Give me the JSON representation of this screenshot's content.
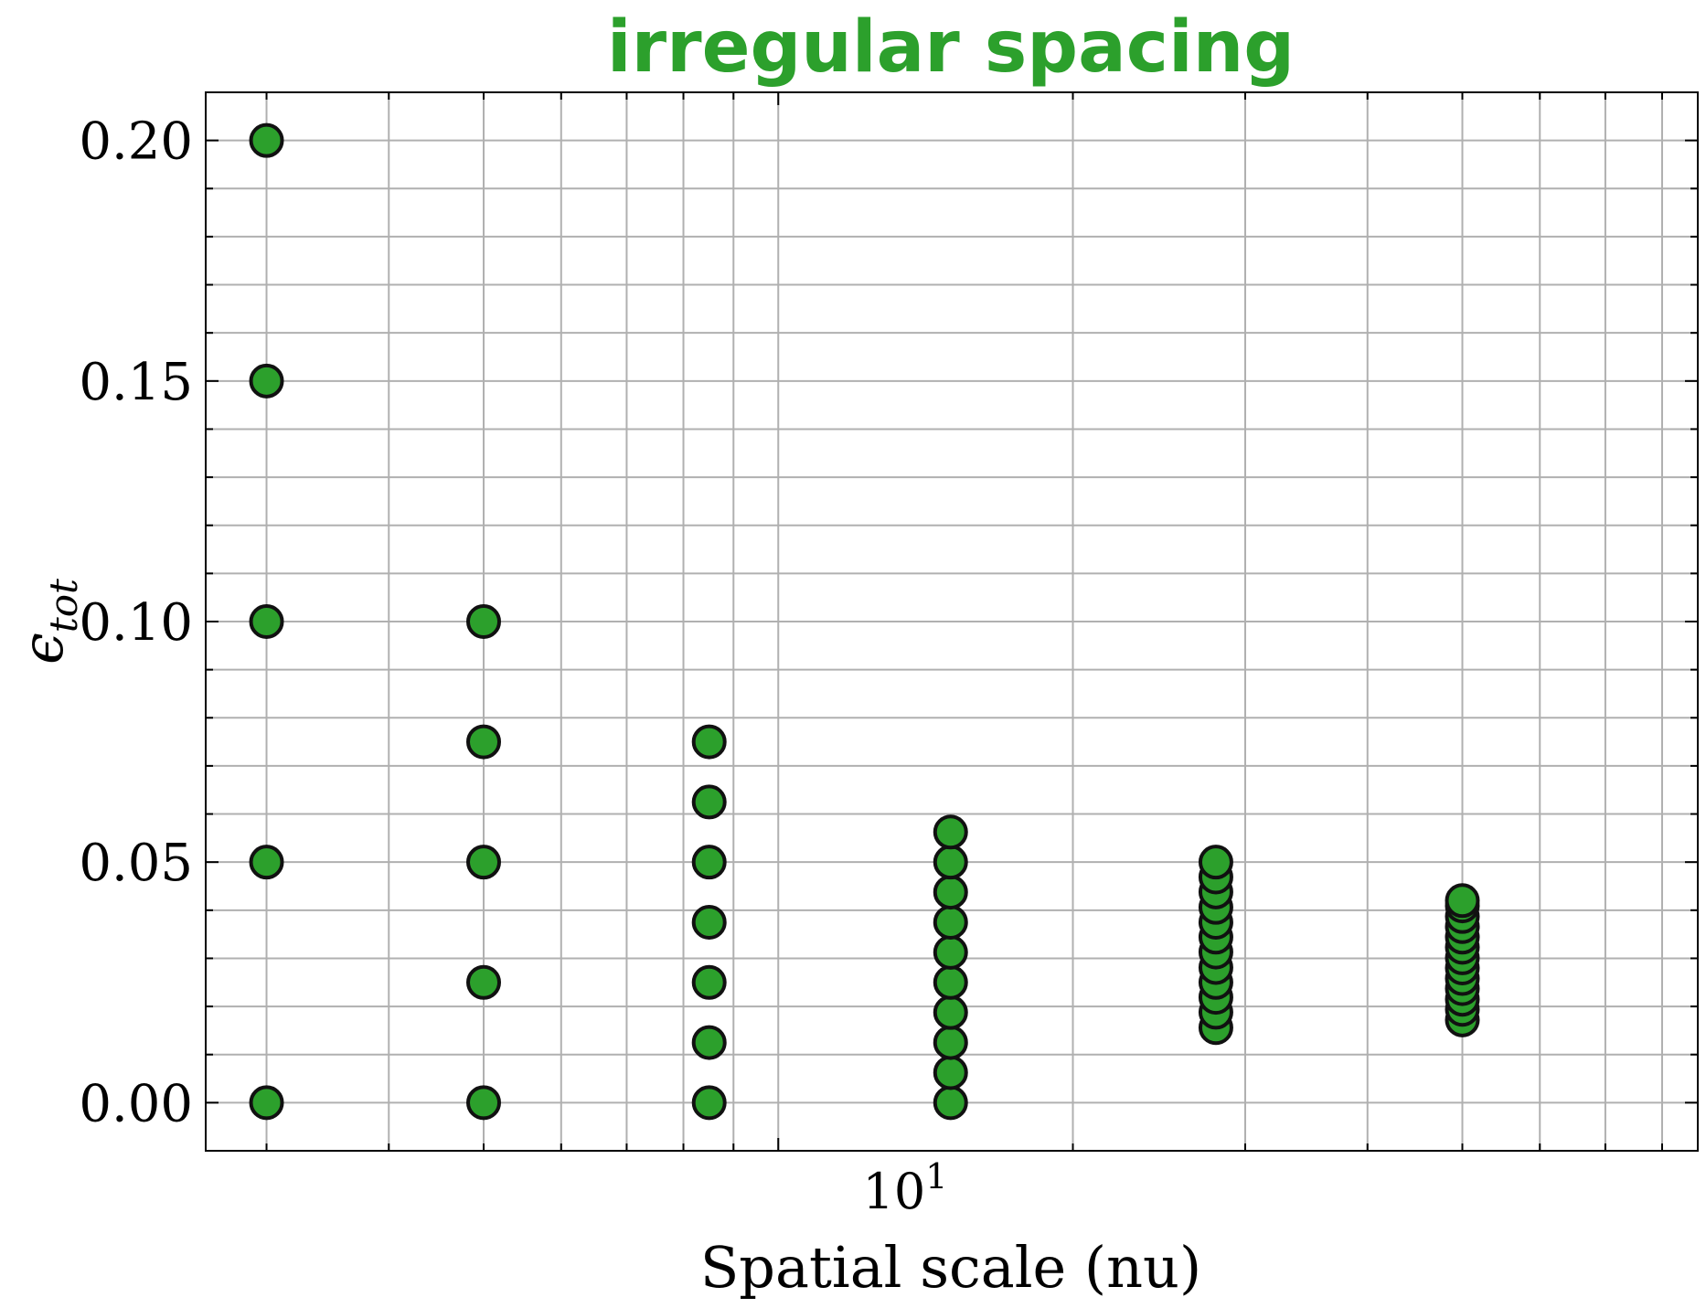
{
  "chart_data": {
    "type": "scatter",
    "title": "irregular spacing",
    "xlabel": "Spatial scale (nu)",
    "ylabel": "ε_tot",
    "ylabel_main": "ϵ",
    "ylabel_sub": "tot",
    "xscale": "log",
    "x_tick_label": {
      "base": "10",
      "exponent": "1"
    },
    "xlim": [
      2.6,
      87
    ],
    "ylim": [
      -0.01,
      0.21
    ],
    "yticks": [
      0.0,
      0.05,
      0.1,
      0.15,
      0.2
    ],
    "ytick_labels": [
      "0.00",
      "0.05",
      "0.10",
      "0.15",
      "0.20"
    ],
    "grid": true,
    "colors": {
      "marker_fill": "#2ca02c",
      "marker_edge": "#111111",
      "title": "#2ca02c",
      "grid": "#b0b0b0",
      "axes": "#000000"
    },
    "points": [
      {
        "x": 3,
        "y": 0.0
      },
      {
        "x": 3,
        "y": 0.05
      },
      {
        "x": 3,
        "y": 0.1
      },
      {
        "x": 3,
        "y": 0.15
      },
      {
        "x": 3,
        "y": 0.2
      },
      {
        "x": 5,
        "y": 0.0
      },
      {
        "x": 5,
        "y": 0.025
      },
      {
        "x": 5,
        "y": 0.05
      },
      {
        "x": 5,
        "y": 0.075
      },
      {
        "x": 5,
        "y": 0.1
      },
      {
        "x": 8.5,
        "y": 0.0
      },
      {
        "x": 8.5,
        "y": 0.0125
      },
      {
        "x": 8.5,
        "y": 0.025
      },
      {
        "x": 8.5,
        "y": 0.0375
      },
      {
        "x": 8.5,
        "y": 0.05
      },
      {
        "x": 8.5,
        "y": 0.0625
      },
      {
        "x": 8.5,
        "y": 0.075
      },
      {
        "x": 15,
        "y": 0.0
      },
      {
        "x": 15,
        "y": 0.00625
      },
      {
        "x": 15,
        "y": 0.0125
      },
      {
        "x": 15,
        "y": 0.01875
      },
      {
        "x": 15,
        "y": 0.025
      },
      {
        "x": 15,
        "y": 0.03125
      },
      {
        "x": 15,
        "y": 0.0375
      },
      {
        "x": 15,
        "y": 0.04375
      },
      {
        "x": 15,
        "y": 0.05
      },
      {
        "x": 15,
        "y": 0.05625
      },
      {
        "x": 28,
        "y": 0.0156
      },
      {
        "x": 28,
        "y": 0.0188
      },
      {
        "x": 28,
        "y": 0.0219
      },
      {
        "x": 28,
        "y": 0.025
      },
      {
        "x": 28,
        "y": 0.0281
      },
      {
        "x": 28,
        "y": 0.0313
      },
      {
        "x": 28,
        "y": 0.0344
      },
      {
        "x": 28,
        "y": 0.0375
      },
      {
        "x": 28,
        "y": 0.0406
      },
      {
        "x": 28,
        "y": 0.0438
      },
      {
        "x": 28,
        "y": 0.0469
      },
      {
        "x": 28,
        "y": 0.05
      },
      {
        "x": 50,
        "y": 0.0172
      },
      {
        "x": 50,
        "y": 0.0194
      },
      {
        "x": 50,
        "y": 0.0215
      },
      {
        "x": 50,
        "y": 0.0237
      },
      {
        "x": 50,
        "y": 0.0258
      },
      {
        "x": 50,
        "y": 0.028
      },
      {
        "x": 50,
        "y": 0.0301
      },
      {
        "x": 50,
        "y": 0.0323
      },
      {
        "x": 50,
        "y": 0.0344
      },
      {
        "x": 50,
        "y": 0.0366
      },
      {
        "x": 50,
        "y": 0.0387
      },
      {
        "x": 50,
        "y": 0.0409
      },
      {
        "x": 50,
        "y": 0.042
      }
    ]
  }
}
